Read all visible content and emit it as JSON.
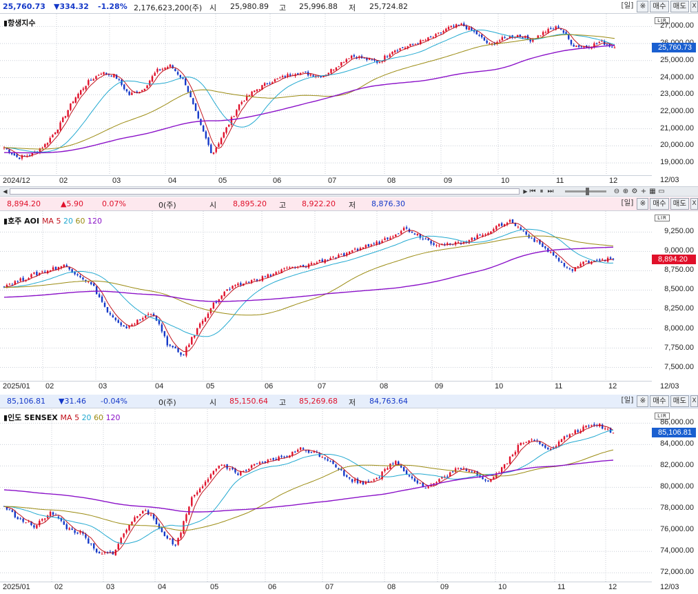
{
  "charts": [
    {
      "quote": {
        "price": "25,760.73",
        "change": "▼334.32",
        "pct": "-1.28%",
        "volume": "2,176,623,200(주)",
        "open_label": "시",
        "open": "25,980.89",
        "high_label": "고",
        "high": "25,996.88",
        "low_label": "저",
        "low": "25,724.82"
      },
      "buttons": {
        "period": "[일]",
        "gear": "※",
        "buy": "매수",
        "sell": "매도",
        "close": "X"
      },
      "title": "항생지수",
      "ma_prefix": "",
      "ma_periods": [],
      "price_tag": "25,760.73",
      "price_ticks": [
        "27,000.00",
        "26,000.00",
        "25,000.00",
        "24,000.00",
        "23,000.00",
        "22,000.00",
        "21,000.00",
        "20,000.00",
        "19,000.00"
      ],
      "date_ticks": [
        "2024/12",
        "02",
        "03",
        "04",
        "05",
        "06",
        "07",
        "08",
        "09",
        "10",
        "11",
        "12"
      ],
      "date_end": "12/03",
      "lr": "LIR"
    },
    {
      "quote": {
        "price": "8,894.20",
        "change": "▲5.90",
        "pct": "0.07%",
        "volume": "0(주)",
        "open_label": "시",
        "open": "8,895.20",
        "high_label": "고",
        "high": "8,922.20",
        "low_label": "저",
        "low": "8,876.30"
      },
      "buttons": {
        "period": "[일]",
        "gear": "※",
        "buy": "매수",
        "sell": "매도",
        "close": "X"
      },
      "title": "호주 AOI",
      "ma_prefix": "MA",
      "ma_periods": [
        "5",
        "20",
        "60",
        "120"
      ],
      "price_tag": "8,894.20",
      "price_ticks": [
        "9,250.00",
        "9,000.00",
        "8,750.00",
        "8,500.00",
        "8,250.00",
        "8,000.00",
        "7,750.00",
        "7,500.00"
      ],
      "date_ticks": [
        "2025/01",
        "02",
        "03",
        "04",
        "05",
        "06",
        "07",
        "08",
        "09",
        "10",
        "11",
        "12"
      ],
      "date_end": "12/03",
      "lr": "LIR"
    },
    {
      "quote": {
        "price": "85,106.81",
        "change": "▼31.46",
        "pct": "-0.04%",
        "volume": "0(주)",
        "open_label": "시",
        "open": "85,150.64",
        "high_label": "고",
        "high": "85,269.68",
        "low_label": "저",
        "low": "84,763.64"
      },
      "buttons": {
        "period": "[일]",
        "gear": "※",
        "buy": "매수",
        "sell": "매도",
        "close": "X"
      },
      "title": "인도 SENSEX",
      "ma_prefix": "MA",
      "ma_periods": [
        "5",
        "20",
        "60",
        "120"
      ],
      "price_tag": "85,106.81",
      "price_ticks": [
        "86,000.00",
        "84,000.00",
        "82,000.00",
        "80,000.00",
        "78,000.00",
        "76,000.00",
        "74,000.00",
        "72,000.00"
      ],
      "date_ticks": [
        "2025/01",
        "02",
        "03",
        "04",
        "05",
        "06",
        "07",
        "08",
        "09",
        "10",
        "11",
        "12"
      ],
      "date_end": "12/03",
      "lr": "LIR"
    }
  ],
  "colors": {
    "up": "#e0102a",
    "down": "#1438c8",
    "ma5": "#c0101a",
    "ma20": "#20a8d0",
    "ma60": "#9a8a10",
    "ma120": "#8a10c8",
    "grid": "#c8cdd6",
    "quote_bg_hsi": "#ffffff",
    "quote_bg_aoi": "#fde8ee",
    "quote_bg_sensex": "#e6eefb",
    "tag_down": "#1a5fd0",
    "tag_up": "#e0102a"
  },
  "chart_data": [
    {
      "type": "candlestick",
      "title": "항생지수",
      "x": [
        "2024/12",
        "02",
        "03",
        "04",
        "05",
        "06",
        "07",
        "08",
        "09",
        "10",
        "11",
        "12"
      ],
      "close_path": [
        19900,
        19300,
        19500,
        20100,
        21200,
        22700,
        23700,
        24300,
        24100,
        23000,
        23300,
        24400,
        24700,
        23800,
        21500,
        19500,
        21000,
        22500,
        23200,
        23700,
        24000,
        24300,
        24200,
        24100,
        24700,
        25300,
        25100,
        24900,
        25600,
        25800,
        26100,
        26400,
        26900,
        27100,
        26600,
        25900,
        26300,
        26500,
        26200,
        26700,
        27000,
        25900,
        25800,
        26100,
        25760.73
      ],
      "ylim": [
        18600,
        27500
      ],
      "last": 25760.73
    },
    {
      "type": "candlestick",
      "title": "호주 AOI",
      "x": [
        "2025/01",
        "02",
        "03",
        "04",
        "05",
        "06",
        "07",
        "08",
        "09",
        "10",
        "11",
        "12"
      ],
      "close_path": [
        8560,
        8620,
        8700,
        8760,
        8820,
        8700,
        8550,
        8200,
        8000,
        8100,
        8220,
        7800,
        7650,
        8000,
        8300,
        8500,
        8580,
        8640,
        8700,
        8780,
        8800,
        8860,
        8920,
        8950,
        9050,
        9100,
        9200,
        9300,
        9200,
        9100,
        9080,
        9130,
        9200,
        9300,
        9400,
        9250,
        9100,
        8950,
        8750,
        8850,
        8900,
        8894.2
      ],
      "ylim": [
        7380,
        9450
      ],
      "last": 8894.2
    },
    {
      "type": "candlestick",
      "title": "인도 SENSEX",
      "x": [
        "2025/01",
        "02",
        "03",
        "04",
        "05",
        "06",
        "07",
        "08",
        "09",
        "10",
        "11",
        "12"
      ],
      "close_path": [
        78200,
        77000,
        76300,
        77800,
        76200,
        75600,
        73700,
        73900,
        76500,
        78100,
        76000,
        74500,
        79000,
        80800,
        82200,
        81200,
        82000,
        82500,
        82900,
        83600,
        83200,
        82400,
        80800,
        80400,
        81000,
        82500,
        81000,
        79900,
        80800,
        81700,
        81600,
        80500,
        82000,
        84000,
        84500,
        83500,
        84800,
        85500,
        85900,
        85106.81
      ],
      "ylim": [
        71500,
        86800
      ],
      "last": 85106.81
    }
  ]
}
